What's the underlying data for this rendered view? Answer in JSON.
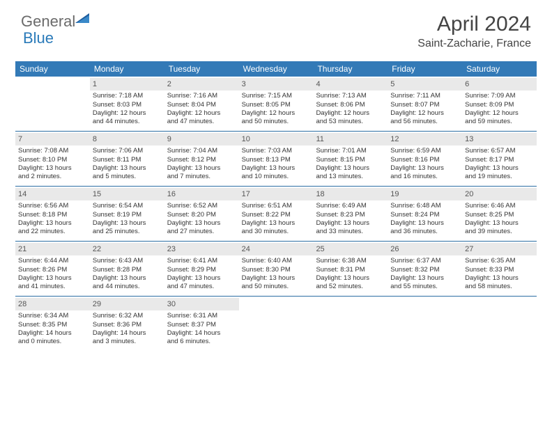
{
  "logo": {
    "text1": "General",
    "text2": "Blue"
  },
  "title": "April 2024",
  "location": "Saint-Zacharie, France",
  "colors": {
    "header_bg": "#337ab7",
    "header_text": "#ffffff",
    "daynum_bg": "#e9e9e9",
    "week_border": "#2a6da3",
    "logo_gray": "#6b6b6b",
    "logo_blue": "#2a7ab9"
  },
  "dayNames": [
    "Sunday",
    "Monday",
    "Tuesday",
    "Wednesday",
    "Thursday",
    "Friday",
    "Saturday"
  ],
  "weeks": [
    [
      {
        "empty": true
      },
      {
        "n": "1",
        "sr": "Sunrise: 7:18 AM",
        "ss": "Sunset: 8:03 PM",
        "d1": "Daylight: 12 hours",
        "d2": "and 44 minutes."
      },
      {
        "n": "2",
        "sr": "Sunrise: 7:16 AM",
        "ss": "Sunset: 8:04 PM",
        "d1": "Daylight: 12 hours",
        "d2": "and 47 minutes."
      },
      {
        "n": "3",
        "sr": "Sunrise: 7:15 AM",
        "ss": "Sunset: 8:05 PM",
        "d1": "Daylight: 12 hours",
        "d2": "and 50 minutes."
      },
      {
        "n": "4",
        "sr": "Sunrise: 7:13 AM",
        "ss": "Sunset: 8:06 PM",
        "d1": "Daylight: 12 hours",
        "d2": "and 53 minutes."
      },
      {
        "n": "5",
        "sr": "Sunrise: 7:11 AM",
        "ss": "Sunset: 8:07 PM",
        "d1": "Daylight: 12 hours",
        "d2": "and 56 minutes."
      },
      {
        "n": "6",
        "sr": "Sunrise: 7:09 AM",
        "ss": "Sunset: 8:09 PM",
        "d1": "Daylight: 12 hours",
        "d2": "and 59 minutes."
      }
    ],
    [
      {
        "n": "7",
        "sr": "Sunrise: 7:08 AM",
        "ss": "Sunset: 8:10 PM",
        "d1": "Daylight: 13 hours",
        "d2": "and 2 minutes."
      },
      {
        "n": "8",
        "sr": "Sunrise: 7:06 AM",
        "ss": "Sunset: 8:11 PM",
        "d1": "Daylight: 13 hours",
        "d2": "and 5 minutes."
      },
      {
        "n": "9",
        "sr": "Sunrise: 7:04 AM",
        "ss": "Sunset: 8:12 PM",
        "d1": "Daylight: 13 hours",
        "d2": "and 7 minutes."
      },
      {
        "n": "10",
        "sr": "Sunrise: 7:03 AM",
        "ss": "Sunset: 8:13 PM",
        "d1": "Daylight: 13 hours",
        "d2": "and 10 minutes."
      },
      {
        "n": "11",
        "sr": "Sunrise: 7:01 AM",
        "ss": "Sunset: 8:15 PM",
        "d1": "Daylight: 13 hours",
        "d2": "and 13 minutes."
      },
      {
        "n": "12",
        "sr": "Sunrise: 6:59 AM",
        "ss": "Sunset: 8:16 PM",
        "d1": "Daylight: 13 hours",
        "d2": "and 16 minutes."
      },
      {
        "n": "13",
        "sr": "Sunrise: 6:57 AM",
        "ss": "Sunset: 8:17 PM",
        "d1": "Daylight: 13 hours",
        "d2": "and 19 minutes."
      }
    ],
    [
      {
        "n": "14",
        "sr": "Sunrise: 6:56 AM",
        "ss": "Sunset: 8:18 PM",
        "d1": "Daylight: 13 hours",
        "d2": "and 22 minutes."
      },
      {
        "n": "15",
        "sr": "Sunrise: 6:54 AM",
        "ss": "Sunset: 8:19 PM",
        "d1": "Daylight: 13 hours",
        "d2": "and 25 minutes."
      },
      {
        "n": "16",
        "sr": "Sunrise: 6:52 AM",
        "ss": "Sunset: 8:20 PM",
        "d1": "Daylight: 13 hours",
        "d2": "and 27 minutes."
      },
      {
        "n": "17",
        "sr": "Sunrise: 6:51 AM",
        "ss": "Sunset: 8:22 PM",
        "d1": "Daylight: 13 hours",
        "d2": "and 30 minutes."
      },
      {
        "n": "18",
        "sr": "Sunrise: 6:49 AM",
        "ss": "Sunset: 8:23 PM",
        "d1": "Daylight: 13 hours",
        "d2": "and 33 minutes."
      },
      {
        "n": "19",
        "sr": "Sunrise: 6:48 AM",
        "ss": "Sunset: 8:24 PM",
        "d1": "Daylight: 13 hours",
        "d2": "and 36 minutes."
      },
      {
        "n": "20",
        "sr": "Sunrise: 6:46 AM",
        "ss": "Sunset: 8:25 PM",
        "d1": "Daylight: 13 hours",
        "d2": "and 39 minutes."
      }
    ],
    [
      {
        "n": "21",
        "sr": "Sunrise: 6:44 AM",
        "ss": "Sunset: 8:26 PM",
        "d1": "Daylight: 13 hours",
        "d2": "and 41 minutes."
      },
      {
        "n": "22",
        "sr": "Sunrise: 6:43 AM",
        "ss": "Sunset: 8:28 PM",
        "d1": "Daylight: 13 hours",
        "d2": "and 44 minutes."
      },
      {
        "n": "23",
        "sr": "Sunrise: 6:41 AM",
        "ss": "Sunset: 8:29 PM",
        "d1": "Daylight: 13 hours",
        "d2": "and 47 minutes."
      },
      {
        "n": "24",
        "sr": "Sunrise: 6:40 AM",
        "ss": "Sunset: 8:30 PM",
        "d1": "Daylight: 13 hours",
        "d2": "and 50 minutes."
      },
      {
        "n": "25",
        "sr": "Sunrise: 6:38 AM",
        "ss": "Sunset: 8:31 PM",
        "d1": "Daylight: 13 hours",
        "d2": "and 52 minutes."
      },
      {
        "n": "26",
        "sr": "Sunrise: 6:37 AM",
        "ss": "Sunset: 8:32 PM",
        "d1": "Daylight: 13 hours",
        "d2": "and 55 minutes."
      },
      {
        "n": "27",
        "sr": "Sunrise: 6:35 AM",
        "ss": "Sunset: 8:33 PM",
        "d1": "Daylight: 13 hours",
        "d2": "and 58 minutes."
      }
    ],
    [
      {
        "n": "28",
        "sr": "Sunrise: 6:34 AM",
        "ss": "Sunset: 8:35 PM",
        "d1": "Daylight: 14 hours",
        "d2": "and 0 minutes."
      },
      {
        "n": "29",
        "sr": "Sunrise: 6:32 AM",
        "ss": "Sunset: 8:36 PM",
        "d1": "Daylight: 14 hours",
        "d2": "and 3 minutes."
      },
      {
        "n": "30",
        "sr": "Sunrise: 6:31 AM",
        "ss": "Sunset: 8:37 PM",
        "d1": "Daylight: 14 hours",
        "d2": "and 6 minutes."
      },
      {
        "empty": true
      },
      {
        "empty": true
      },
      {
        "empty": true
      },
      {
        "empty": true
      }
    ]
  ]
}
